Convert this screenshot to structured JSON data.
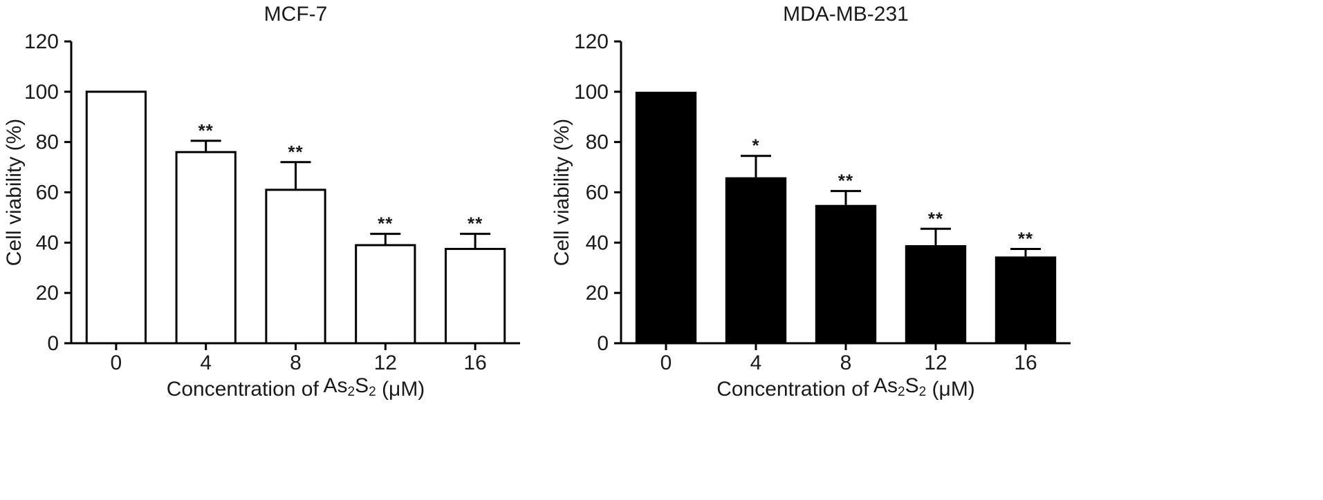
{
  "chart_data": [
    {
      "type": "bar",
      "title": "MCF-7",
      "xlabel": "Concentration of As2S2 (μM)",
      "ylabel": "Cell viability (%)",
      "categories": [
        "0",
        "4",
        "8",
        "12",
        "16"
      ],
      "values": [
        100,
        76,
        61,
        39,
        37.5
      ],
      "errors": [
        0,
        4.5,
        11,
        4.5,
        6
      ],
      "significance": [
        "",
        "**",
        "**",
        "**",
        "**"
      ],
      "ylim": [
        0,
        120
      ],
      "yticks": [
        "0",
        "20",
        "40",
        "60",
        "80",
        "100",
        "120"
      ],
      "bar_fill": "#ffffff",
      "bar_stroke": "#000000",
      "grid": false
    },
    {
      "type": "bar",
      "title": "MDA-MB-231",
      "xlabel": "Concentration of As2S2 (μM)",
      "ylabel": "Cell viability (%)",
      "categories": [
        "0",
        "4",
        "8",
        "12",
        "16"
      ],
      "values": [
        100,
        66,
        55,
        39,
        34.5
      ],
      "errors": [
        0,
        8.5,
        5.5,
        6.5,
        3
      ],
      "significance": [
        "",
        "*",
        "**",
        "**",
        "**"
      ],
      "ylim": [
        0,
        120
      ],
      "yticks": [
        "0",
        "20",
        "40",
        "60",
        "80",
        "100",
        "120"
      ],
      "bar_fill": "#000000",
      "bar_stroke": "#000000",
      "grid": false
    }
  ]
}
